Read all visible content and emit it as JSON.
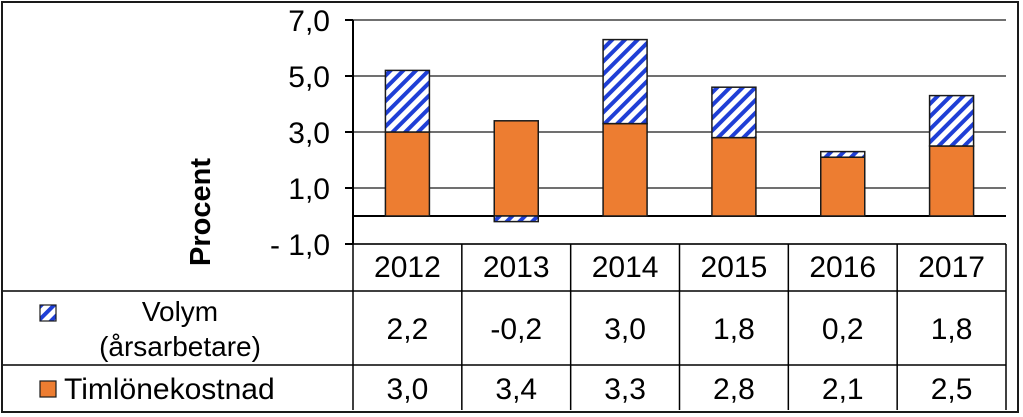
{
  "chart_data": {
    "type": "bar",
    "stacked": true,
    "title": "",
    "xlabel": "",
    "ylabel": "Procent",
    "ylim": [
      -1.0,
      7.0
    ],
    "yticks": [
      -1.0,
      1.0,
      3.0,
      5.0,
      7.0
    ],
    "ytick_labels": [
      "- 1,0",
      "1,0",
      "3,0",
      "5,0",
      "7,0"
    ],
    "grid": "horizontal",
    "legend_placement": "data-table-left",
    "categories": [
      "2012",
      "2013",
      "2014",
      "2015",
      "2016",
      "2017"
    ],
    "series": [
      {
        "name": "Timlönekostnad",
        "color": "#ed7d31",
        "pattern": "solid",
        "values": [
          3.0,
          3.4,
          3.3,
          2.8,
          2.1,
          2.5
        ],
        "value_labels": [
          "3,0",
          "3,4",
          "3,3",
          "2,8",
          "2,1",
          "2,5"
        ]
      },
      {
        "name": "Volym (årsarbetare)",
        "name_lines": [
          "Volym",
          "(årsarbetare)"
        ],
        "color": "#1f3fd6",
        "pattern": "diagonal-hatch",
        "values": [
          2.2,
          -0.2,
          3.0,
          1.8,
          0.2,
          1.8
        ],
        "value_labels": [
          "2,2",
          "-0,2",
          "3,0",
          "1,8",
          "0,2",
          "1,8"
        ]
      }
    ]
  }
}
